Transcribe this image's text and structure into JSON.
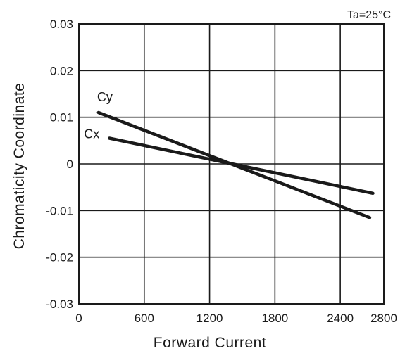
{
  "chart_data": {
    "type": "line",
    "title": "",
    "xlabel": "Forward Current",
    "ylabel": "Chromaticity Coordinate",
    "annotation": "Ta=25°C",
    "xlim": [
      0,
      2800
    ],
    "ylim": [
      -0.03,
      0.03
    ],
    "x_ticks": [
      0,
      600,
      1200,
      1800,
      2400,
      2800
    ],
    "x_tick_labels": [
      "0",
      "600",
      "1200",
      "1800",
      "2400",
      "2800"
    ],
    "y_ticks": [
      0.03,
      0.02,
      0.01,
      0,
      -0.01,
      -0.02,
      -0.03
    ],
    "y_tick_labels": [
      "0.03",
      "0.02",
      "0.01",
      "0",
      "-0.01",
      "-0.02",
      "-0.03"
    ],
    "grid": true,
    "series": [
      {
        "name": "Cy",
        "x": [
          180,
          2670
        ],
        "y": [
          0.011,
          -0.0115
        ]
      },
      {
        "name": "Cx",
        "x": [
          280,
          2700
        ],
        "y": [
          0.0055,
          -0.0063
        ]
      }
    ],
    "line_color": "#1a1a1a"
  }
}
